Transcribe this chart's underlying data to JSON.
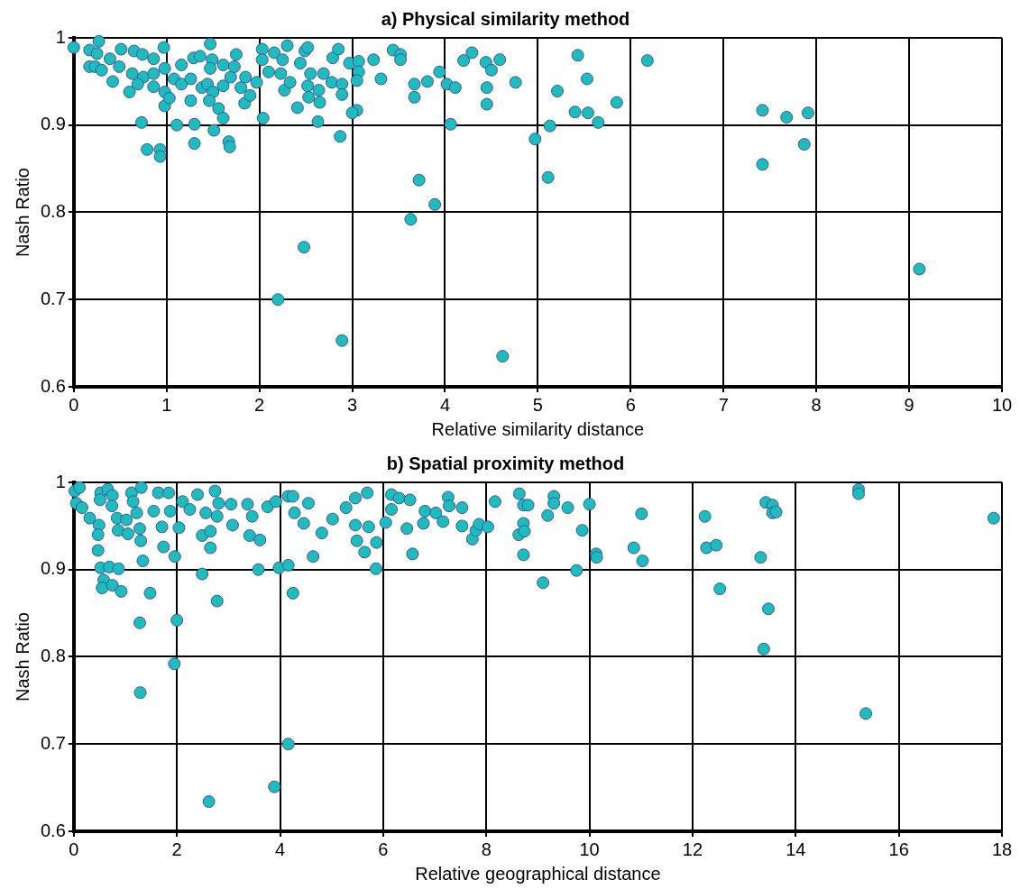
{
  "chart_data": [
    {
      "type": "scatter",
      "title": "a) Physical similarity method",
      "xlabel": "Relative similarity distance",
      "ylabel": "Nash Ratio",
      "xlim": [
        0,
        10
      ],
      "xticks": [
        0,
        1,
        2,
        3,
        4,
        5,
        6,
        7,
        8,
        9,
        10
      ],
      "ylim": [
        0.6,
        1
      ],
      "yticks": [
        0.6,
        0.7,
        0.8,
        0.9,
        1
      ],
      "grid": true,
      "legend": false,
      "marker": "circle",
      "series": [
        {
          "color": "#1fbcbc",
          "x": [
            0,
            0.17,
            0.27,
            0.25,
            0.17,
            0.23,
            0.3,
            0.39,
            0.42,
            0.51,
            0.49,
            0.6,
            0.63,
            0.65,
            0.74,
            0.75,
            0.69,
            0.86,
            0.86,
            0.86,
            0.97,
            0.98,
            0.98,
            0.98,
            1.03,
            1.08,
            1.16,
            1.16,
            1.26,
            1.26,
            1.29,
            1.36,
            1.38,
            1.44,
            1.47,
            1.49,
            1.47,
            1.5,
            1.46,
            1.56,
            1.61,
            1.61,
            1.61,
            1.69,
            1.73,
            1.75,
            1.8,
            1.84,
            1.85,
            1.9,
            1.97,
            2.03,
            2.03,
            2.1,
            2.16,
            2.25,
            2.23,
            2.3,
            2.27,
            2.33,
            2.41,
            2.44,
            2.49,
            2.52,
            2.52,
            2.53,
            2.55,
            2.65,
            2.64,
            2.69,
            2.79,
            2.78,
            2.85,
            2.89,
            2.89,
            2.97,
            3.07,
            3.07,
            3.05,
            3.05,
            3,
            3.23,
            3.31,
            3.44,
            3.52,
            3.52,
            0.73,
            1.11,
            1.3,
            1.51,
            0.79,
            0.93,
            0.93,
            1.3,
            1.67,
            1.68,
            2.04,
            2.63,
            2.87,
            3.72,
            3.63,
            3.67,
            3.67,
            3.81,
            2.2,
            2.48,
            2.89,
            3.94,
            4.2,
            4.29,
            4.44,
            4.59,
            4.5,
            4.45,
            4.45,
            4.76,
            4.02,
            4.11,
            4.06,
            5.43,
            5.53,
            5.21,
            5.4,
            5.54,
            5.65,
            5.85,
            6.18,
            5.13,
            4.97,
            5.11,
            3.89,
            4.62,
            7.42,
            7.68,
            7.91,
            7.87,
            7.42,
            9.11
          ],
          "values": [
            0.989,
            0.986,
            0.996,
            0.982,
            0.967,
            0.967,
            0.963,
            0.976,
            0.95,
            0.987,
            0.967,
            0.938,
            0.959,
            0.985,
            0.981,
            0.955,
            0.947,
            0.959,
            0.976,
            0.944,
            0.989,
            0.965,
            0.938,
            0.922,
            0.931,
            0.953,
            0.947,
            0.969,
            0.953,
            0.928,
            0.977,
            0.979,
            0.943,
            0.947,
            0.993,
            0.975,
            0.965,
            0.938,
            0.928,
            0.919,
            0.908,
            0.945,
            0.969,
            0.955,
            0.967,
            0.981,
            0.943,
            0.925,
            0.955,
            0.934,
            0.949,
            0.987,
            0.975,
            0.961,
            0.983,
            0.975,
            0.959,
            0.991,
            0.94,
            0.949,
            0.92,
            0.971,
            0.985,
            0.989,
            0.945,
            0.932,
            0.959,
            0.926,
            0.94,
            0.959,
            0.977,
            0.949,
            0.987,
            0.947,
            0.935,
            0.971,
            0.973,
            0.961,
            0.951,
            0.917,
            0.914,
            0.975,
            0.953,
            0.986,
            0.981,
            0.975,
            0.903,
            0.9,
            0.901,
            0.894,
            0.872,
            0.872,
            0.864,
            0.879,
            0.881,
            0.875,
            0.908,
            0.904,
            0.887,
            0.837,
            0.792,
            0.947,
            0.932,
            0.95,
            0.7,
            0.76,
            0.653,
            0.961,
            0.974,
            0.983,
            0.972,
            0.975,
            0.963,
            0.943,
            0.924,
            0.949,
            0.947,
            0.943,
            0.901,
            0.98,
            0.953,
            0.939,
            0.915,
            0.914,
            0.903,
            0.926,
            0.974,
            0.899,
            0.884,
            0.84,
            0.809,
            0.635,
            0.917,
            0.909,
            0.914,
            0.878,
            0.855,
            0.735
          ]
        }
      ]
    },
    {
      "type": "scatter",
      "title": "b) Spatial proximity method",
      "xlabel": "Relative geographical distance",
      "ylabel": "Nash Ratio",
      "xlim": [
        0,
        18
      ],
      "xticks": [
        0,
        2,
        4,
        6,
        8,
        10,
        12,
        14,
        16,
        18
      ],
      "ylim": [
        0.6,
        1
      ],
      "yticks": [
        0.6,
        0.7,
        0.8,
        0.9,
        1
      ],
      "grid": true,
      "legend": false,
      "marker": "circle",
      "series": [
        {
          "color": "#1fbcbc",
          "x": [
            0.02,
            0.11,
            0.05,
            0.16,
            0.31,
            0.49,
            0.47,
            0.47,
            0.52,
            0.51,
            0.66,
            0.75,
            0.74,
            0.84,
            0.86,
            1.02,
            1.05,
            1.12,
            1.15,
            1.22,
            1.28,
            1.3,
            1.31,
            1.34,
            1.55,
            1.64,
            1.71,
            1.74,
            1.84,
            1.87,
            1.96,
            2.04,
            2.11,
            2.25,
            2.4,
            2.49,
            2.56,
            2.65,
            2.65,
            2.74,
            2.78,
            2.81,
            3.05,
            3.08,
            3.37,
            3.41,
            3.61,
            3.76,
            3.46,
            3.92,
            4.16,
            4.25,
            4.28,
            4.46,
            4.55,
            4.81,
            5.02,
            5.28,
            5.46,
            5.69,
            5.72,
            5.87,
            5.46,
            5.49,
            5.64,
            6.16,
            6.31,
            6.52,
            6.16,
            6.05,
            6.46,
            6.81,
            7.02,
            6.78,
            6.57,
            0.52,
            0.69,
            0.87,
            0.58,
            0.55,
            0.75,
            0.92,
            1.48,
            2.49,
            2.78,
            3.58,
            3.98,
            4.16,
            4.25,
            4.64,
            5.86,
            1.28,
            2,
            1.29,
            1.95,
            2.62,
            3.89,
            4.16,
            7.26,
            7.28,
            7.53,
            7.16,
            7.53,
            7.73,
            7.8,
            7.86,
            8.03,
            8.17,
            8.64,
            8.72,
            8.81,
            8.72,
            8.63,
            8.74,
            8.72,
            9.31,
            9.31,
            9.19,
            9.58,
            10,
            9.86,
            10.13,
            10.14,
            9.75,
            9.1,
            11.01,
            10.86,
            11.03,
            12.24,
            12.27,
            12.46,
            12.53,
            13.42,
            13.55,
            13.55,
            13.62,
            13.32,
            13.47,
            13.38,
            15.22,
            15.22,
            15.36,
            17.84
          ],
          "values": [
            0.99,
            0.994,
            0.976,
            0.971,
            0.959,
            0.951,
            0.94,
            0.922,
            0.988,
            0.98,
            0.992,
            0.985,
            0.973,
            0.959,
            0.945,
            0.957,
            0.941,
            0.988,
            0.978,
            0.965,
            0.947,
            0.933,
            0.994,
            0.91,
            0.967,
            0.988,
            0.949,
            0.926,
            0.988,
            0.967,
            0.915,
            0.948,
            0.978,
            0.969,
            0.986,
            0.939,
            0.965,
            0.944,
            0.925,
            0.99,
            0.961,
            0.976,
            0.975,
            0.951,
            0.975,
            0.939,
            0.934,
            0.972,
            0.961,
            0.978,
            0.984,
            0.984,
            0.965,
            0.953,
            0.976,
            0.942,
            0.958,
            0.971,
            0.982,
            0.988,
            0.949,
            0.931,
            0.951,
            0.933,
            0.92,
            0.986,
            0.982,
            0.98,
            0.969,
            0.954,
            0.947,
            0.967,
            0.965,
            0.953,
            0.918,
            0.902,
            0.903,
            0.901,
            0.888,
            0.879,
            0.882,
            0.875,
            0.873,
            0.895,
            0.864,
            0.9,
            0.902,
            0.905,
            0.873,
            0.915,
            0.901,
            0.839,
            0.842,
            0.759,
            0.792,
            0.634,
            0.651,
            0.7,
            0.983,
            0.973,
            0.971,
            0.955,
            0.95,
            0.935,
            0.945,
            0.952,
            0.949,
            0.978,
            0.987,
            0.974,
            0.974,
            0.953,
            0.94,
            0.944,
            0.917,
            0.984,
            0.976,
            0.962,
            0.971,
            0.975,
            0.945,
            0.918,
            0.914,
            0.899,
            0.885,
            0.964,
            0.925,
            0.91,
            0.961,
            0.925,
            0.928,
            0.878,
            0.977,
            0.974,
            0.965,
            0.966,
            0.914,
            0.855,
            0.809,
            0.992,
            0.987,
            0.735,
            0.959
          ]
        }
      ]
    }
  ]
}
